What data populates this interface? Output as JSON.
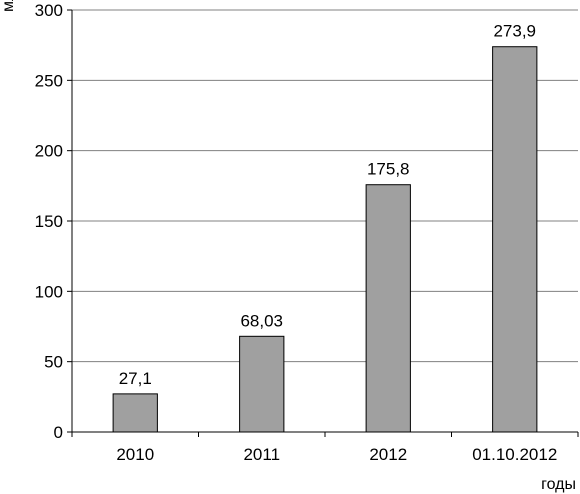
{
  "chart_data": {
    "type": "bar",
    "categories": [
      "2010",
      "2011",
      "2012",
      "01.10.2012"
    ],
    "values": [
      27.1,
      68.03,
      175.8,
      273.9
    ],
    "value_labels": [
      "27,1",
      "68,03",
      "175,8",
      "273,9"
    ],
    "title": "",
    "xlabel": "годы",
    "ylabel": "млн р.",
    "ylim": [
      0,
      300
    ],
    "yticks": [
      0,
      50,
      100,
      150,
      200,
      250,
      300
    ],
    "grid": true,
    "legend": "none",
    "colors": {
      "bar": "#a0a0a0",
      "bar_edge": "#000000",
      "grid": "#808080",
      "axis": "#000000"
    }
  }
}
